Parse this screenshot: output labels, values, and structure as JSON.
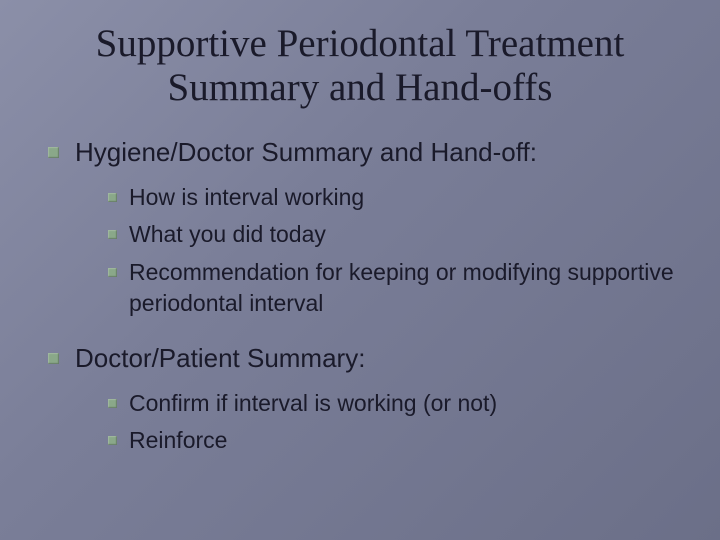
{
  "slide": {
    "background_gradient": [
      "#8b8fa8",
      "#7a7e98",
      "#6b6f88"
    ],
    "text_color": "#1a1a2a",
    "bullet_color": "#8aa889",
    "title_font": "Times New Roman",
    "body_font": "Verdana",
    "title_fontsize": 39,
    "level1_fontsize": 26,
    "level2_fontsize": 23,
    "title": "Supportive Periodontal Treatment Summary and Hand-offs",
    "sections": [
      {
        "heading": "Hygiene/Doctor Summary and Hand-off:",
        "items": [
          "How is interval working",
          "What you did today",
          "Recommendation for keeping or modifying supportive periodontal interval"
        ]
      },
      {
        "heading": "Doctor/Patient Summary:",
        "items": [
          "Confirm if interval is working (or not)",
          "Reinforce"
        ]
      }
    ]
  }
}
